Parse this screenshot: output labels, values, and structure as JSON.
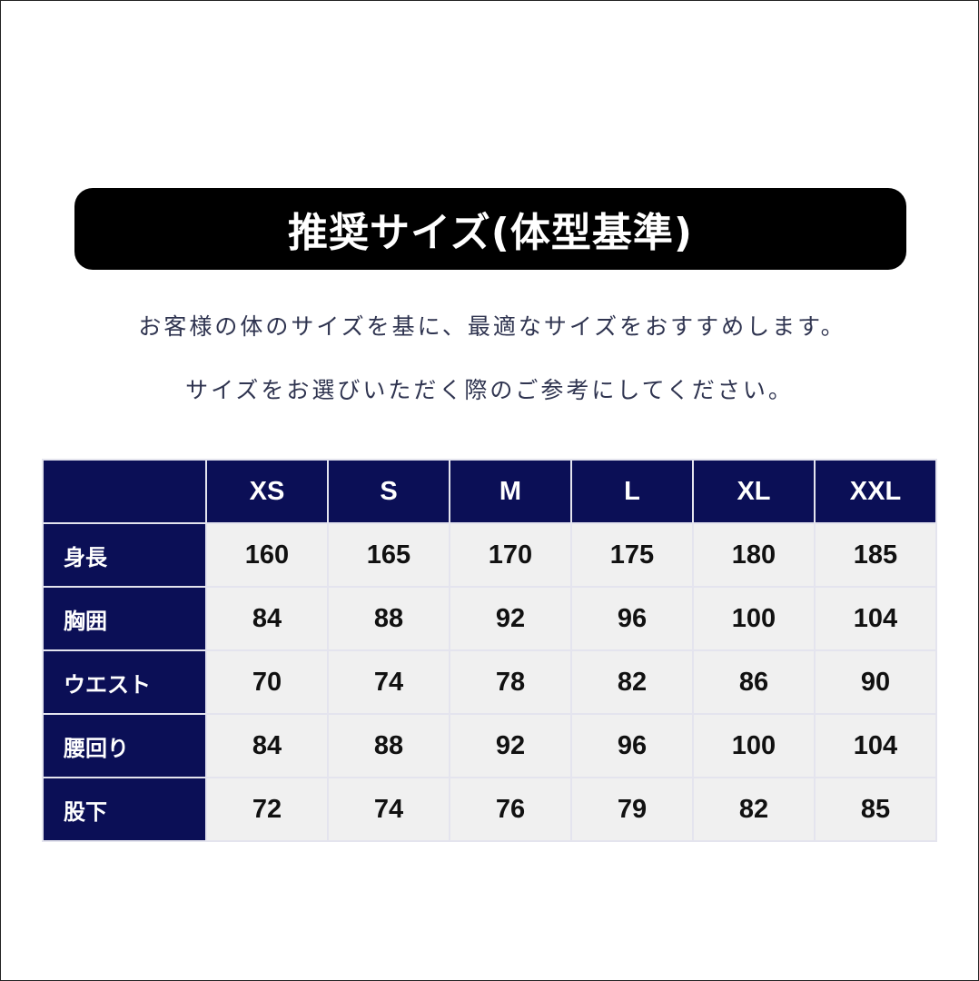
{
  "title": "推奨サイズ(体型基準)",
  "subtitle_lines": [
    "お客様の体のサイズを基に、最適なサイズをおすすめします。",
    "サイズをお選びいただく際のご参考にしてください。"
  ],
  "colors": {
    "header_bg": "#0b0f56",
    "cell_bg": "#f0f0f0",
    "title_bg": "#000000"
  },
  "table": {
    "columns": [
      "XS",
      "S",
      "M",
      "L",
      "XL",
      "XXL"
    ],
    "rows": [
      {
        "label": "身長",
        "values": [
          "160",
          "165",
          "170",
          "175",
          "180",
          "185"
        ]
      },
      {
        "label": "胸囲",
        "values": [
          "84",
          "88",
          "92",
          "96",
          "100",
          "104"
        ]
      },
      {
        "label": "ウエスト",
        "values": [
          "70",
          "74",
          "78",
          "82",
          "86",
          "90"
        ]
      },
      {
        "label": "腰回り",
        "values": [
          "84",
          "88",
          "92",
          "96",
          "100",
          "104"
        ]
      },
      {
        "label": "股下",
        "values": [
          "72",
          "74",
          "76",
          "79",
          "82",
          "85"
        ]
      }
    ]
  }
}
